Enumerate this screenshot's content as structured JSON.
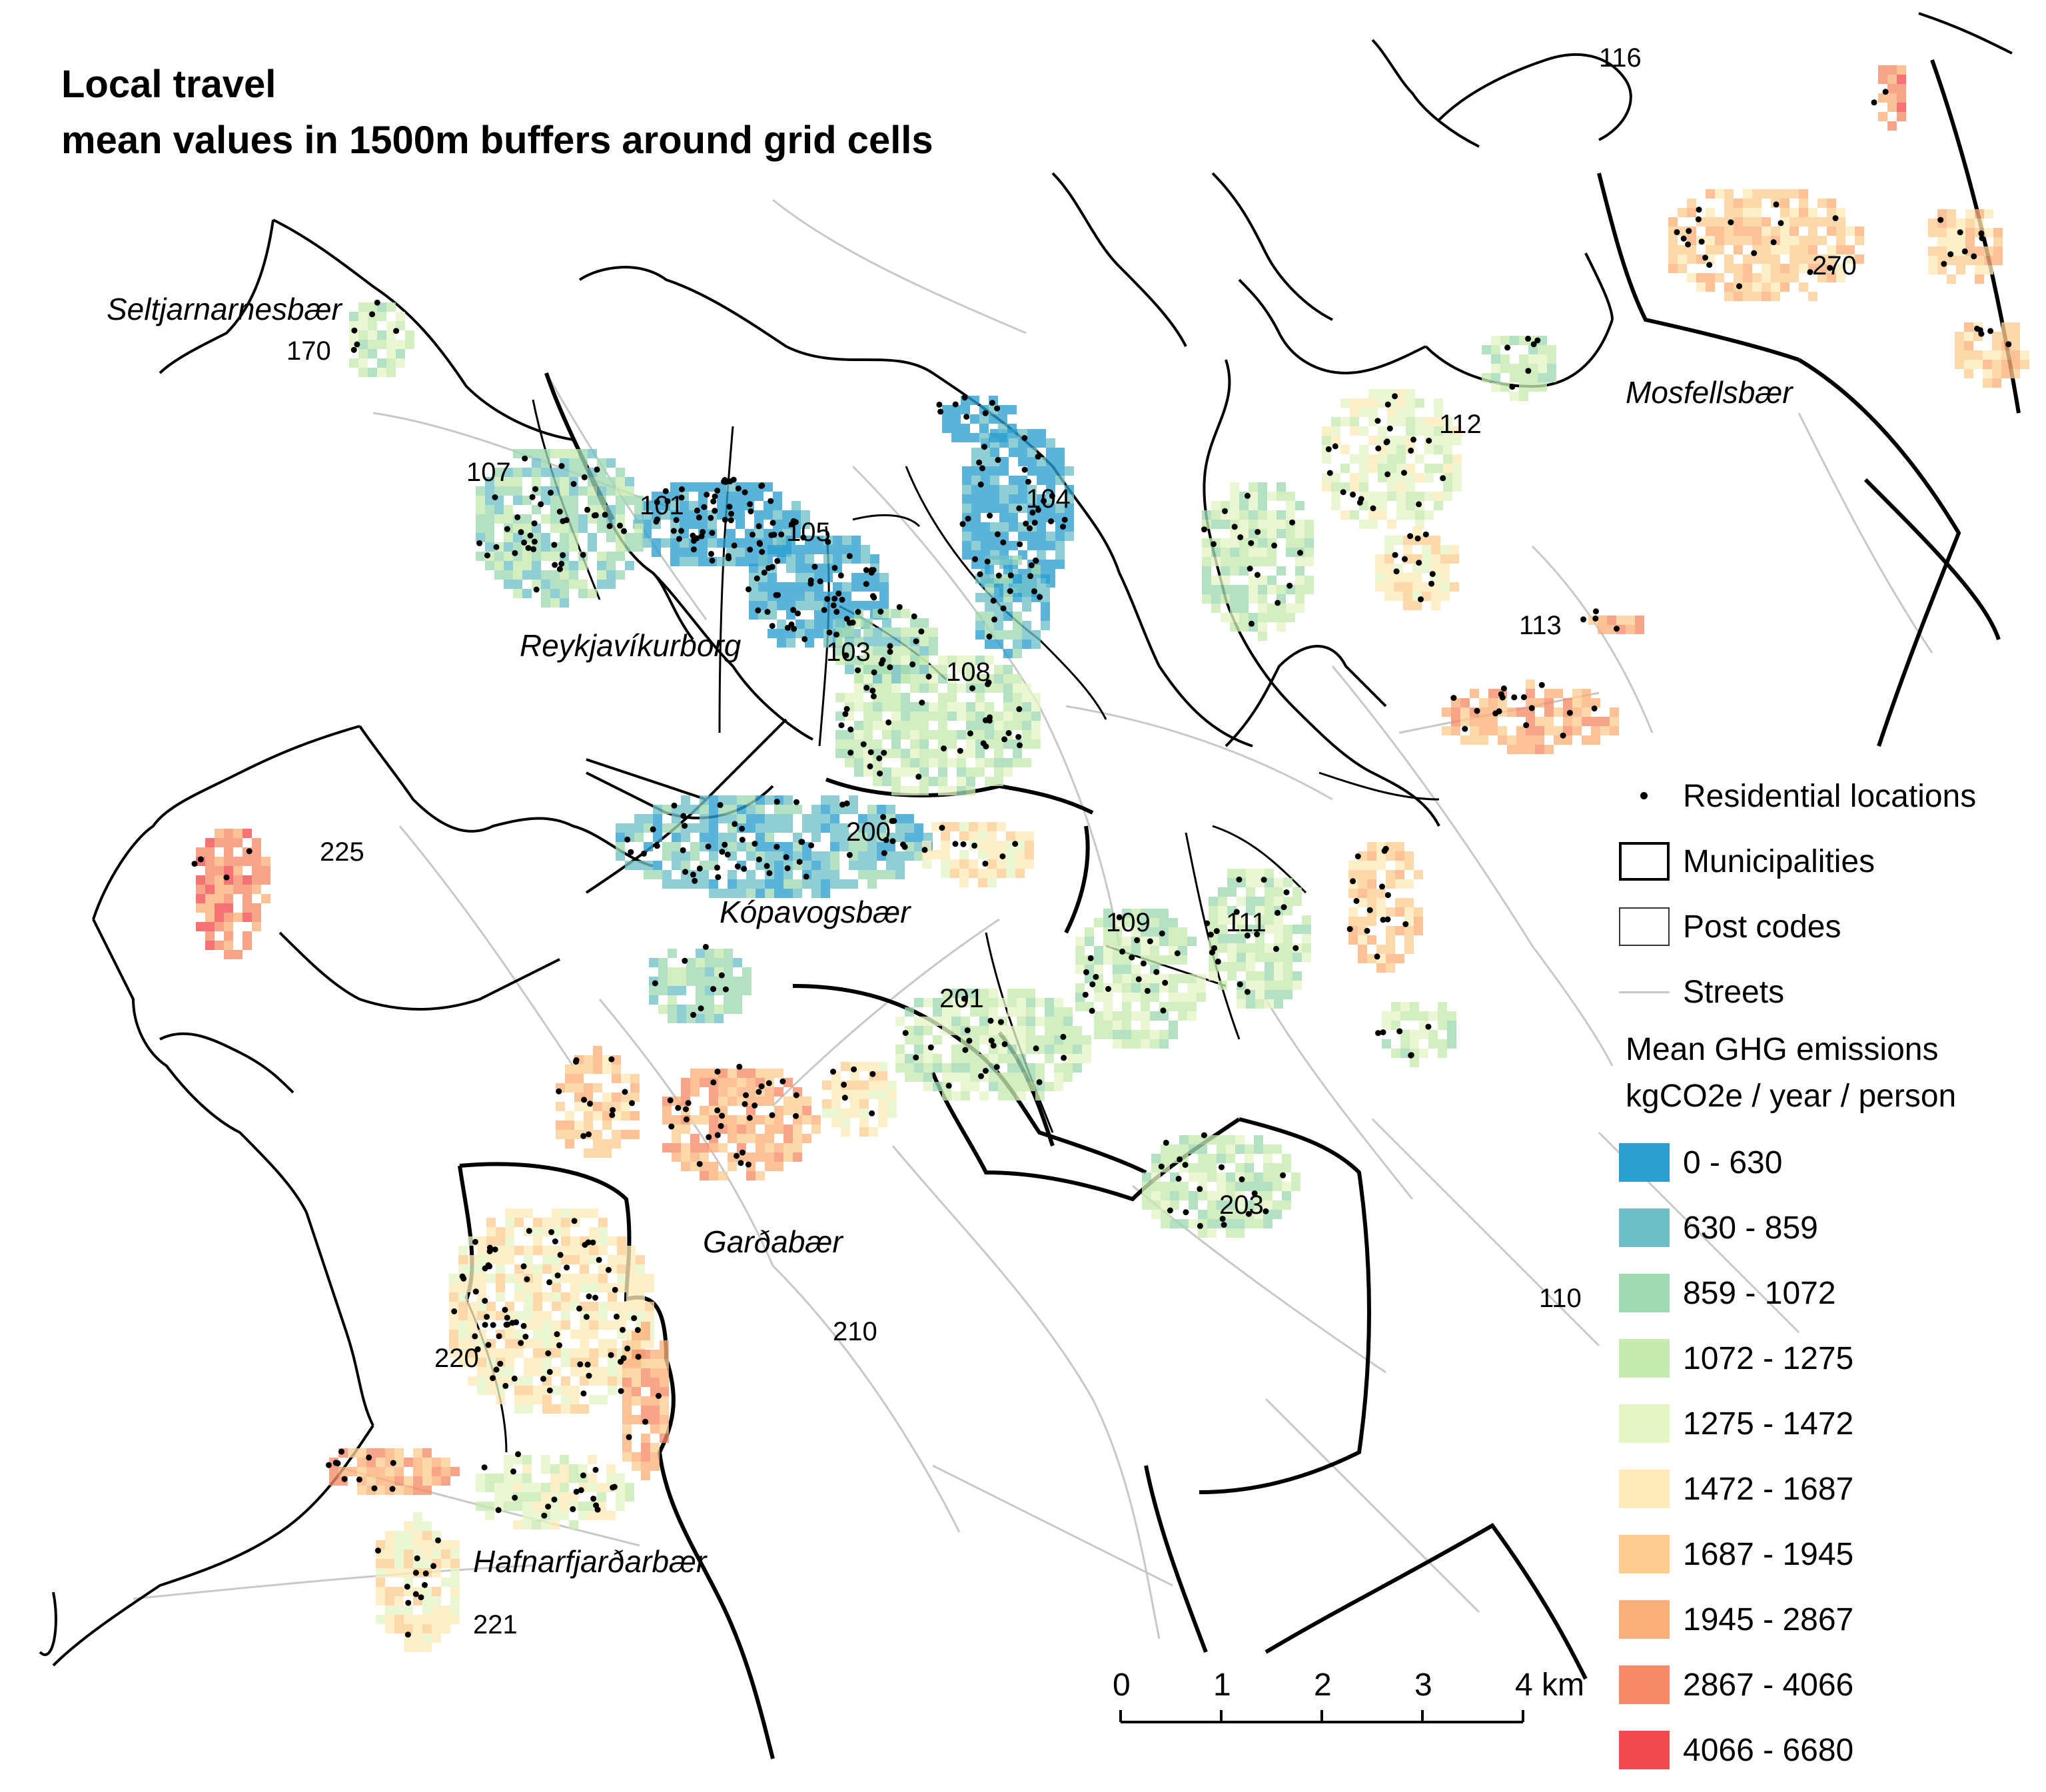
{
  "title": {
    "line1": "Local travel",
    "line2": "mean values in 1500m buffers around grid cells"
  },
  "municipalities": {
    "seltjarnarnes": "Seltjarnarnesbær",
    "reykjavik": "Reykjavíkurborg",
    "kopavogur": "Kópavogsbær",
    "gardabaer": "Garðabær",
    "hafnarfjordur": "Hafnarfjarðarbær",
    "mosfellsbaer": "Mosfellsbær"
  },
  "post_codes": {
    "p101": "101",
    "p103": "103",
    "p104": "104",
    "p105": "105",
    "p107": "107",
    "p108": "108",
    "p109": "109",
    "p110": "110",
    "p111": "111",
    "p112": "112",
    "p113": "113",
    "p116": "116",
    "p170": "170",
    "p200": "200",
    "p201": "201",
    "p203": "203",
    "p210": "210",
    "p220": "220",
    "p221": "221",
    "p225": "225",
    "p270": "270"
  },
  "legend": {
    "residential": "Residential locations",
    "municipalities": "Municipalities",
    "post_codes": "Post codes",
    "streets": "Streets",
    "heading1": "Mean GHG emissions",
    "heading2": "kgCO2e / year / person",
    "classes": [
      {
        "label": "0 - 630",
        "color": "#2b9fcf"
      },
      {
        "label": "630 - 859",
        "color": "#6fc0c6"
      },
      {
        "label": "859 - 1072",
        "color": "#9fd8b2"
      },
      {
        "label": "1072 - 1275",
        "color": "#c6eab0"
      },
      {
        "label": "1275 - 1472",
        "color": "#e6f5c6"
      },
      {
        "label": "1472 - 1687",
        "color": "#fcebb8"
      },
      {
        "label": "1687 - 1945",
        "color": "#fdcd92"
      },
      {
        "label": "1945 - 2867",
        "color": "#fbaf78"
      },
      {
        "label": "2867 - 4066",
        "color": "#f68a68"
      },
      {
        "label": "4066 - 6680",
        "color": "#f24a4e"
      }
    ]
  },
  "scale_bar": {
    "ticks": [
      "0",
      "1",
      "2",
      "3",
      "4 km"
    ]
  }
}
